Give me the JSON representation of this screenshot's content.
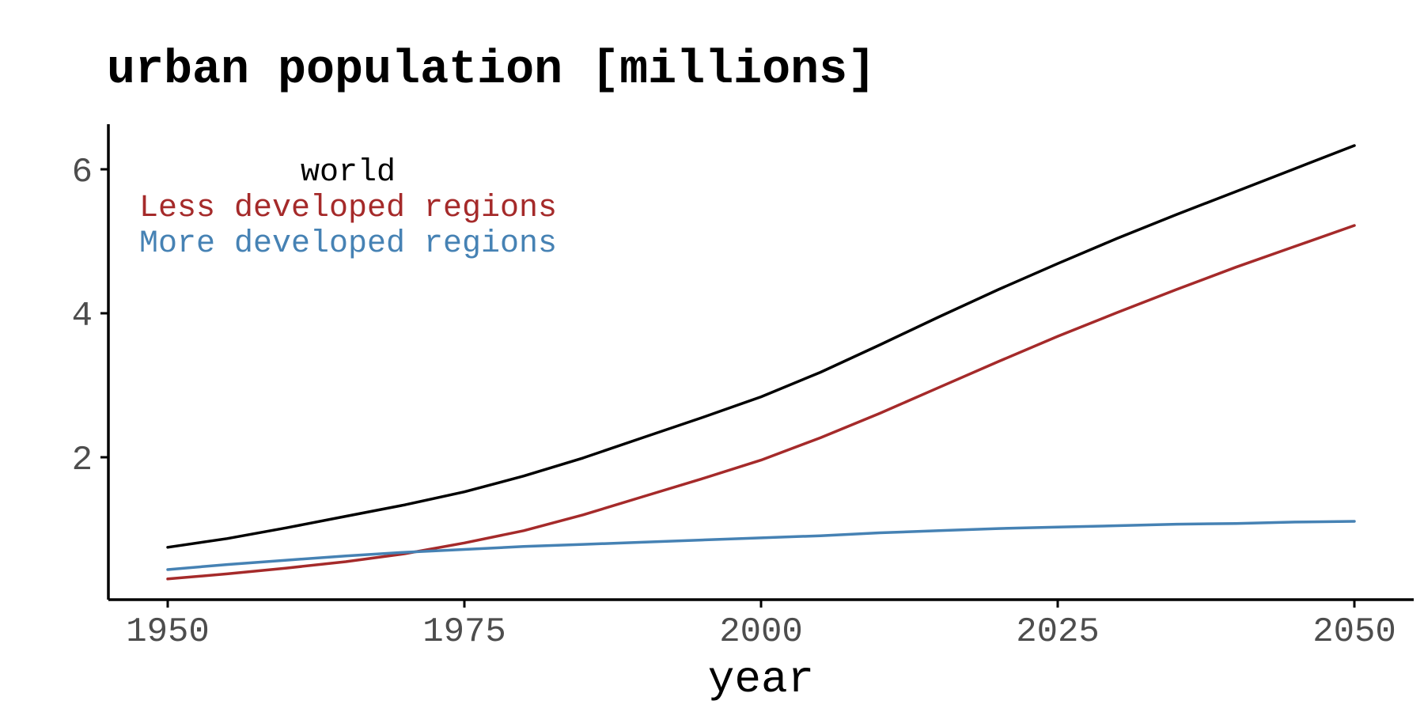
{
  "chart_data": {
    "type": "line",
    "title": "urban population [millions]",
    "xlabel": "year",
    "ylabel": "",
    "xlim": [
      1945,
      2060
    ],
    "ylim": [
      0,
      6.6
    ],
    "xticks": [
      1950,
      1975,
      2000,
      2025,
      2050
    ],
    "yticks": [
      2,
      4,
      6
    ],
    "grid": false,
    "legend": "top-left",
    "x": [
      1950,
      1955,
      1960,
      1965,
      1970,
      1975,
      1980,
      1985,
      1990,
      1995,
      2000,
      2005,
      2010,
      2015,
      2020,
      2025,
      2030,
      2035,
      2040,
      2045,
      2050
    ],
    "series": [
      {
        "name": "world",
        "color": "#000000",
        "values": [
          0.75,
          0.87,
          1.02,
          1.18,
          1.34,
          1.52,
          1.74,
          1.99,
          2.27,
          2.55,
          2.84,
          3.18,
          3.56,
          3.95,
          4.33,
          4.69,
          5.04,
          5.37,
          5.69,
          6.01,
          6.33
        ]
      },
      {
        "name": "Less developed regions",
        "color": "#a52a2a",
        "values": [
          0.31,
          0.38,
          0.46,
          0.55,
          0.66,
          0.81,
          0.98,
          1.2,
          1.45,
          1.7,
          1.96,
          2.27,
          2.61,
          2.97,
          3.33,
          3.68,
          4.01,
          4.33,
          4.64,
          4.93,
          5.22
        ]
      },
      {
        "name": "More developed regions",
        "color": "#4682b4",
        "values": [
          0.44,
          0.51,
          0.57,
          0.63,
          0.68,
          0.72,
          0.76,
          0.79,
          0.82,
          0.85,
          0.88,
          0.91,
          0.95,
          0.98,
          1.01,
          1.03,
          1.05,
          1.07,
          1.08,
          1.1,
          1.11
        ]
      }
    ]
  }
}
